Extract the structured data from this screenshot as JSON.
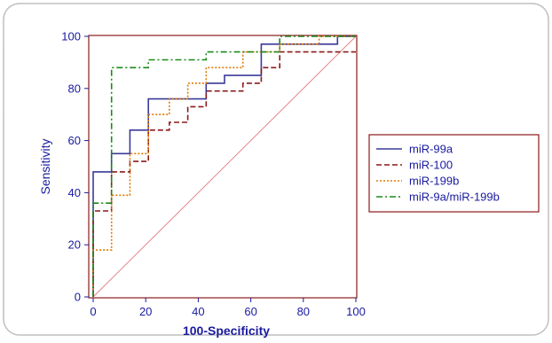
{
  "chart_data": {
    "type": "line",
    "title": "",
    "xlabel": "100-Specificity",
    "ylabel": "Sensitivity",
    "xlim": [
      0,
      100
    ],
    "ylim": [
      0,
      100
    ],
    "xticks": [
      0,
      20,
      40,
      60,
      80,
      100
    ],
    "yticks": [
      0,
      20,
      40,
      60,
      80,
      100
    ],
    "grid": false,
    "legend_position": "right",
    "diagonal_reference": true,
    "series": [
      {
        "name": "miR-99a",
        "color": "#3a3a9a",
        "dash": "solid",
        "x": [
          0,
          0,
          7,
          7,
          14,
          14,
          21,
          21,
          43,
          43,
          50,
          50,
          64,
          64,
          93,
          93,
          100
        ],
        "y": [
          0,
          48,
          48,
          55,
          55,
          64,
          64,
          76,
          76,
          82,
          82,
          85,
          85,
          97,
          97,
          100,
          100
        ]
      },
      {
        "name": "miR-100",
        "color": "#8b1a1a",
        "dash": "dashed",
        "x": [
          0,
          0,
          7,
          7,
          14,
          14,
          21,
          21,
          29,
          29,
          36,
          36,
          43,
          43,
          57,
          57,
          64,
          64,
          71,
          71,
          100
        ],
        "y": [
          0,
          33,
          33,
          48,
          48,
          52,
          52,
          64,
          64,
          67,
          67,
          73,
          73,
          79,
          79,
          82,
          82,
          88,
          88,
          94,
          94
        ]
      },
      {
        "name": "miR-199b",
        "color": "#e07800",
        "dash": "dotted",
        "x": [
          0,
          0,
          7,
          7,
          14,
          14,
          21,
          21,
          29,
          29,
          36,
          36,
          43,
          43,
          57,
          57,
          71,
          71,
          86,
          86,
          100
        ],
        "y": [
          0,
          18,
          18,
          39,
          39,
          55,
          55,
          70,
          70,
          76,
          76,
          82,
          82,
          88,
          88,
          94,
          94,
          97,
          97,
          100,
          100
        ]
      },
      {
        "name": "miR-9a/miR-199b",
        "color": "#1a8a1a",
        "dash": "dashdot",
        "x": [
          0,
          0,
          7,
          7,
          21,
          21,
          43,
          43,
          71,
          71,
          100
        ],
        "y": [
          0,
          36,
          36,
          88,
          88,
          91,
          91,
          94,
          94,
          100,
          100
        ]
      }
    ]
  }
}
